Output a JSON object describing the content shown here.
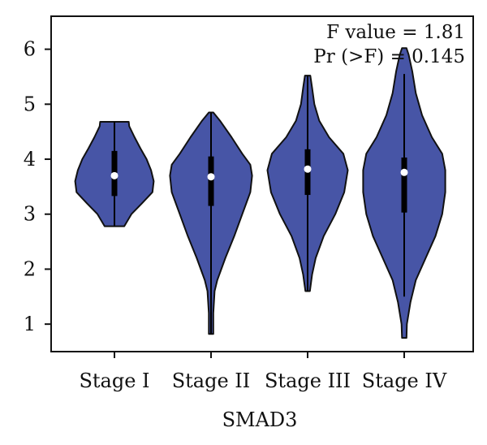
{
  "chart_data": {
    "type": "violin",
    "xlabel": "SMAD3",
    "ylabel": "",
    "ylim": [
      0.5,
      6.6
    ],
    "yticks": [
      1,
      2,
      3,
      4,
      5,
      6
    ],
    "grid": false,
    "legend": "none",
    "categories": [
      "Stage I",
      "Stage II",
      "Stage III",
      "Stage IV"
    ],
    "annotations": [
      "F value = 1.81",
      "Pr (>F) = 0.145"
    ],
    "colors": {
      "fill": "#4755a6",
      "outline": "#111111",
      "median": "#ffffff",
      "box": "#000000"
    },
    "series": [
      {
        "category": "Stage I",
        "min": 2.78,
        "max": 4.68,
        "q1": 3.33,
        "median": 3.7,
        "q3": 4.15,
        "whisker_low": 2.78,
        "whisker_high": 4.68,
        "density": [
          [
            2.78,
            0.22
          ],
          [
            3.0,
            0.38
          ],
          [
            3.2,
            0.62
          ],
          [
            3.4,
            0.85
          ],
          [
            3.6,
            0.88
          ],
          [
            3.8,
            0.82
          ],
          [
            4.0,
            0.72
          ],
          [
            4.2,
            0.58
          ],
          [
            4.4,
            0.45
          ],
          [
            4.6,
            0.33
          ],
          [
            4.68,
            0.32
          ]
        ]
      },
      {
        "category": "Stage II",
        "min": 0.82,
        "max": 4.85,
        "q1": 3.15,
        "median": 3.68,
        "q3": 4.05,
        "whisker_low": 0.82,
        "whisker_high": 4.85,
        "density": [
          [
            0.82,
            0.05
          ],
          [
            1.2,
            0.05
          ],
          [
            1.6,
            0.08
          ],
          [
            1.8,
            0.14
          ],
          [
            2.2,
            0.32
          ],
          [
            2.6,
            0.52
          ],
          [
            3.0,
            0.7
          ],
          [
            3.4,
            0.88
          ],
          [
            3.7,
            0.92
          ],
          [
            3.9,
            0.88
          ],
          [
            4.1,
            0.7
          ],
          [
            4.4,
            0.46
          ],
          [
            4.7,
            0.2
          ],
          [
            4.85,
            0.05
          ]
        ]
      },
      {
        "category": "Stage III",
        "min": 1.6,
        "max": 5.52,
        "q1": 3.35,
        "median": 3.82,
        "q3": 4.18,
        "whisker_low": 1.6,
        "whisker_high": 5.52,
        "density": [
          [
            1.6,
            0.05
          ],
          [
            1.9,
            0.1
          ],
          [
            2.2,
            0.18
          ],
          [
            2.6,
            0.36
          ],
          [
            3.0,
            0.62
          ],
          [
            3.4,
            0.82
          ],
          [
            3.8,
            0.9
          ],
          [
            4.1,
            0.8
          ],
          [
            4.4,
            0.48
          ],
          [
            4.7,
            0.26
          ],
          [
            5.0,
            0.15
          ],
          [
            5.3,
            0.1
          ],
          [
            5.52,
            0.06
          ]
        ]
      },
      {
        "category": "Stage IV",
        "min": 0.75,
        "max": 6.02,
        "q1": 3.03,
        "median": 3.76,
        "q3": 4.03,
        "whisker_low": 1.5,
        "whisker_high": 5.55,
        "density": [
          [
            0.75,
            0.05
          ],
          [
            1.0,
            0.06
          ],
          [
            1.4,
            0.14
          ],
          [
            1.8,
            0.26
          ],
          [
            2.2,
            0.48
          ],
          [
            2.6,
            0.7
          ],
          [
            3.0,
            0.85
          ],
          [
            3.4,
            0.92
          ],
          [
            3.8,
            0.92
          ],
          [
            4.1,
            0.85
          ],
          [
            4.4,
            0.62
          ],
          [
            4.8,
            0.4
          ],
          [
            5.2,
            0.26
          ],
          [
            5.6,
            0.18
          ],
          [
            5.9,
            0.1
          ],
          [
            6.02,
            0.05
          ]
        ]
      }
    ]
  }
}
